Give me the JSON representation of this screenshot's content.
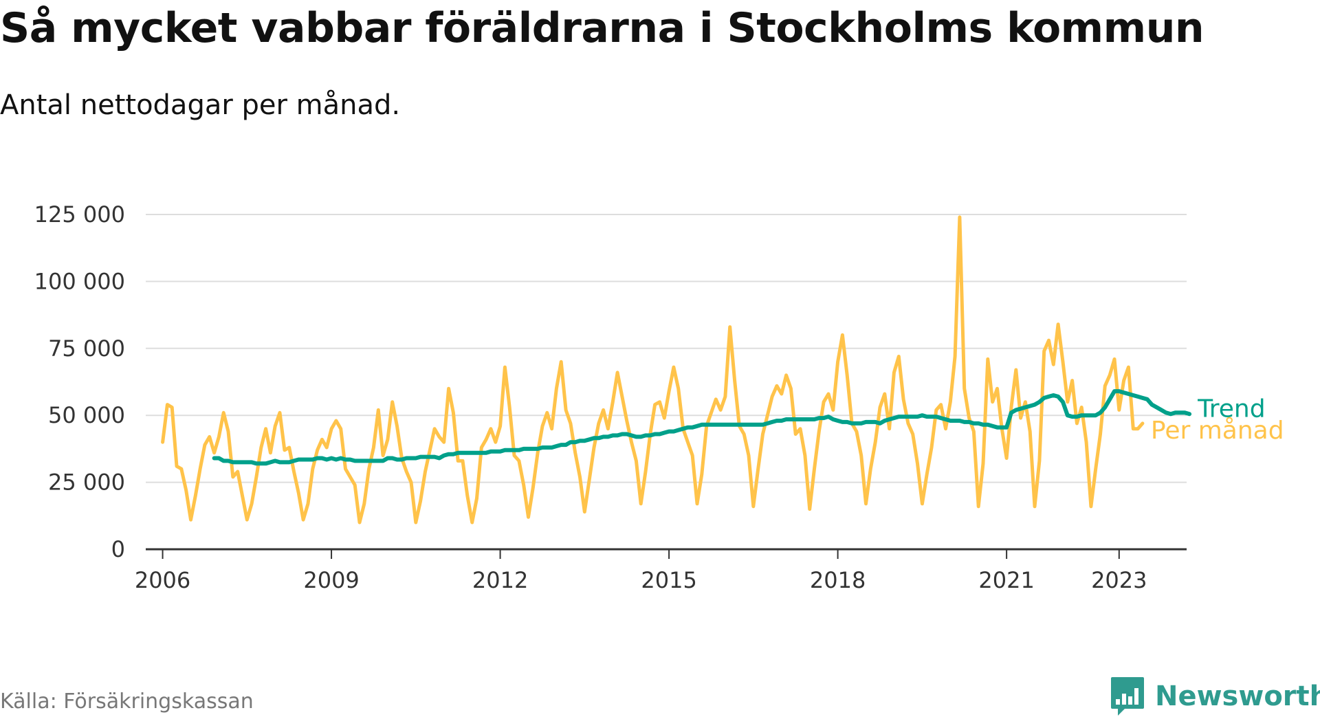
{
  "title": "Så mycket vabbar föräldrarna i Stockholms kommun",
  "subtitle": "Antal nettodagar per månad.",
  "source": "Källa: Försäkringskassan",
  "brand": {
    "name": "Newsworthy",
    "icon": "bar-chart-speech-bubble-icon",
    "color": "#2f9b8f"
  },
  "colors": {
    "monthly": "#ffc34a",
    "trend": "#00a08a",
    "grid": "#dddddd",
    "axis": "#333333"
  },
  "chart_data": {
    "type": "line",
    "title": "Så mycket vabbar föräldrarna i Stockholms kommun",
    "subtitle": "Antal nettodagar per månad.",
    "xlabel": "",
    "ylabel": "",
    "xlim": [
      2005.7,
      2024.2
    ],
    "ylim": [
      0,
      125000
    ],
    "grid": true,
    "legend": "inline at line ends",
    "x_ticks": [
      {
        "value": 2006,
        "label": "2006"
      },
      {
        "value": 2009,
        "label": "2009"
      },
      {
        "value": 2012,
        "label": "2012"
      },
      {
        "value": 2015,
        "label": "2015"
      },
      {
        "value": 2018,
        "label": "2018"
      },
      {
        "value": 2021,
        "label": "2021"
      },
      {
        "value": 2023,
        "label": "2023"
      }
    ],
    "y_ticks": [
      {
        "value": 0,
        "label": "0"
      },
      {
        "value": 25000,
        "label": "25 000"
      },
      {
        "value": 50000,
        "label": "50 000"
      },
      {
        "value": 75000,
        "label": "75 000"
      },
      {
        "value": 100000,
        "label": "100 000"
      },
      {
        "value": 125000,
        "label": "125 000"
      }
    ],
    "series": [
      {
        "name": "Per månad",
        "color": "#ffc34a",
        "start": "2006-01",
        "values": [
          40000,
          54000,
          53000,
          31000,
          30000,
          22000,
          11000,
          20000,
          30000,
          39000,
          42000,
          36000,
          42000,
          51000,
          44000,
          27000,
          29000,
          20000,
          11000,
          17000,
          27000,
          38000,
          45000,
          36000,
          46000,
          51000,
          37000,
          38000,
          29000,
          21000,
          11000,
          17000,
          30000,
          37000,
          41000,
          38000,
          45000,
          48000,
          45000,
          30000,
          27000,
          24000,
          10000,
          17000,
          30000,
          38000,
          52000,
          35000,
          41000,
          55000,
          46000,
          34000,
          29000,
          25000,
          10000,
          18000,
          29000,
          37000,
          45000,
          42000,
          40000,
          60000,
          51000,
          33000,
          33000,
          20000,
          10000,
          19000,
          38000,
          41000,
          45000,
          40000,
          46000,
          68000,
          53000,
          35000,
          33000,
          24000,
          12000,
          23000,
          36000,
          46000,
          51000,
          45000,
          60000,
          70000,
          52000,
          47000,
          36000,
          27000,
          14000,
          26000,
          38000,
          47000,
          52000,
          45000,
          55000,
          66000,
          57000,
          48000,
          40000,
          33000,
          17000,
          29000,
          43000,
          54000,
          55000,
          49000,
          59000,
          68000,
          60000,
          45000,
          40000,
          35000,
          17000,
          28000,
          46000,
          51000,
          56000,
          52000,
          57000,
          83000,
          63000,
          46000,
          43000,
          35000,
          16000,
          30000,
          43000,
          50000,
          57000,
          61000,
          58000,
          65000,
          60000,
          43000,
          45000,
          35000,
          15000,
          30000,
          44000,
          55000,
          58000,
          52000,
          70000,
          80000,
          65000,
          47000,
          44000,
          35000,
          17000,
          30000,
          40000,
          53000,
          58000,
          45000,
          66000,
          72000,
          56000,
          47000,
          43000,
          32000,
          17000,
          28000,
          38000,
          52000,
          54000,
          45000,
          55000,
          72000,
          124000,
          60000,
          49000,
          44000,
          16000,
          32000,
          71000,
          55000,
          60000,
          45000,
          34000,
          53000,
          67000,
          49000,
          55000,
          44000,
          16000,
          33000,
          74000,
          78000,
          69000,
          84000,
          70000,
          55000,
          63000,
          47000,
          53000,
          40000,
          16000,
          30000,
          43000,
          61000,
          65000,
          71000,
          52000,
          63000,
          68000,
          45000,
          45000,
          47000
        ]
      },
      {
        "name": "Trend",
        "color": "#00a08a",
        "start": "2006-12",
        "values": [
          34000,
          34000,
          33000,
          33000,
          32500,
          32500,
          32500,
          32500,
          32500,
          32000,
          32000,
          32000,
          32500,
          33000,
          32500,
          32500,
          32500,
          33000,
          33500,
          33500,
          33500,
          33500,
          34000,
          34000,
          33500,
          34000,
          33500,
          34000,
          33500,
          33500,
          33000,
          33000,
          33000,
          33000,
          33000,
          33000,
          33000,
          34000,
          34000,
          33500,
          33500,
          34000,
          34000,
          34000,
          34500,
          34500,
          34500,
          34500,
          34000,
          35000,
          35500,
          35500,
          36000,
          36000,
          36000,
          36000,
          36000,
          36000,
          36000,
          36500,
          36500,
          36500,
          37000,
          37000,
          37000,
          37000,
          37500,
          37500,
          37500,
          37500,
          38000,
          38000,
          38000,
          38500,
          39000,
          39000,
          40000,
          40000,
          40500,
          40500,
          41000,
          41500,
          41500,
          42000,
          42000,
          42500,
          42500,
          43000,
          43000,
          42500,
          42000,
          42000,
          42500,
          42500,
          43000,
          43000,
          43500,
          44000,
          44000,
          44500,
          45000,
          45500,
          45500,
          46000,
          46500,
          46500,
          46500,
          46500,
          46500,
          46500,
          46500,
          46500,
          46500,
          46500,
          46500,
          46500,
          46500,
          46500,
          47000,
          47500,
          48000,
          48000,
          48500,
          48500,
          48500,
          48500,
          48500,
          48500,
          48500,
          49000,
          49000,
          49500,
          48500,
          48000,
          47500,
          47500,
          47000,
          47000,
          47000,
          47500,
          47500,
          47500,
          47000,
          48000,
          48500,
          49000,
          49500,
          49500,
          49500,
          49500,
          49500,
          50000,
          49500,
          49500,
          49500,
          49000,
          48500,
          48000,
          48000,
          48000,
          47500,
          47500,
          47000,
          47000,
          46500,
          46500,
          46000,
          45500,
          45500,
          45500,
          51000,
          52000,
          52500,
          53000,
          53500,
          54000,
          55000,
          56500,
          57000,
          57500,
          57000,
          55000,
          50000,
          49500,
          49500,
          50000,
          50000,
          50000,
          50000,
          51000,
          53000,
          56000,
          59000,
          59000,
          58500,
          58000,
          57500,
          57000,
          56500,
          56000,
          54000,
          53000,
          52000,
          51000,
          50500,
          51000,
          51000,
          51000,
          50500
        ]
      }
    ]
  }
}
